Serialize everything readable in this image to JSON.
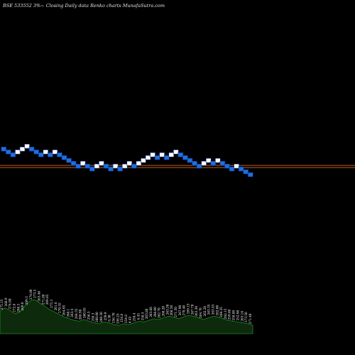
{
  "header": {
    "title": "BSE 533552  3%~  Closing Daily data  Renko  charts MunafaSutra.com"
  },
  "colors": {
    "background": "#000000",
    "up_brick": "#ffffff",
    "down_brick": "#1e6fe0",
    "brick_outline": "#0a2a7a",
    "reference_line": "#c0601c",
    "volume_fill": "#0d2a0d",
    "volume_edge": "#1e8a1e"
  },
  "chart_data": {
    "type": "renko",
    "title": "BSE 533552  3%~  Closing Daily data  Renko  charts MunafaSutra.com",
    "bricks": [
      {
        "level": 270,
        "dir": "down"
      },
      {
        "level": 268,
        "dir": "down"
      },
      {
        "level": 266,
        "dir": "down"
      },
      {
        "level": 268,
        "dir": "up"
      },
      {
        "level": 270,
        "dir": "up"
      },
      {
        "level": 272,
        "dir": "up"
      },
      {
        "level": 270,
        "dir": "down"
      },
      {
        "level": 268,
        "dir": "down"
      },
      {
        "level": 266,
        "dir": "down"
      },
      {
        "level": 268,
        "dir": "up"
      },
      {
        "level": 266,
        "dir": "down"
      },
      {
        "level": 268,
        "dir": "up"
      },
      {
        "level": 266,
        "dir": "down"
      },
      {
        "level": 264,
        "dir": "down"
      },
      {
        "level": 262,
        "dir": "down"
      },
      {
        "level": 260,
        "dir": "down"
      },
      {
        "level": 258,
        "dir": "down"
      },
      {
        "level": 260,
        "dir": "up"
      },
      {
        "level": 258,
        "dir": "down"
      },
      {
        "level": 256,
        "dir": "down"
      },
      {
        "level": 258,
        "dir": "up"
      },
      {
        "level": 260,
        "dir": "up"
      },
      {
        "level": 258,
        "dir": "down"
      },
      {
        "level": 256,
        "dir": "down"
      },
      {
        "level": 258,
        "dir": "up"
      },
      {
        "level": 256,
        "dir": "down"
      },
      {
        "level": 258,
        "dir": "up"
      },
      {
        "level": 260,
        "dir": "up"
      },
      {
        "level": 258,
        "dir": "down"
      },
      {
        "level": 260,
        "dir": "up"
      },
      {
        "level": 262,
        "dir": "up"
      },
      {
        "level": 264,
        "dir": "up"
      },
      {
        "level": 266,
        "dir": "up"
      },
      {
        "level": 264,
        "dir": "down"
      },
      {
        "level": 266,
        "dir": "up"
      },
      {
        "level": 264,
        "dir": "down"
      },
      {
        "level": 266,
        "dir": "up"
      },
      {
        "level": 268,
        "dir": "up"
      },
      {
        "level": 266,
        "dir": "down"
      },
      {
        "level": 264,
        "dir": "down"
      },
      {
        "level": 262,
        "dir": "down"
      },
      {
        "level": 260,
        "dir": "down"
      },
      {
        "level": 258,
        "dir": "down"
      },
      {
        "level": 260,
        "dir": "up"
      },
      {
        "level": 262,
        "dir": "up"
      },
      {
        "level": 260,
        "dir": "down"
      },
      {
        "level": 262,
        "dir": "up"
      },
      {
        "level": 260,
        "dir": "down"
      },
      {
        "level": 258,
        "dir": "down"
      },
      {
        "level": 256,
        "dir": "down"
      },
      {
        "level": 258,
        "dir": "up"
      },
      {
        "level": 256,
        "dir": "down"
      },
      {
        "level": 254,
        "dir": "down"
      },
      {
        "level": 252,
        "dir": "down"
      }
    ],
    "reference_lines": [
      258.5,
      257
    ],
    "y_range": [
      200,
      340
    ],
    "price_labels": [
      "275.15",
      "268.9",
      "274.00",
      "272.8",
      "280.3",
      "269.0",
      "269.3",
      "274.00",
      "273.5",
      "263.46",
      "271.80",
      "269.85",
      "275.3",
      "261.6",
      "270.55",
      "264.95",
      "268.1",
      "263.4",
      "264.55",
      "268.98",
      "260.85",
      "256.5",
      "256.3",
      "260.00",
      "260.30",
      "259.9",
      "6.30",
      "256.70",
      "258.25",
      "254.8",
      "254.8",
      "6.45",
      "258.4",
      "6.45",
      "258.5",
      "263.88",
      "263.88",
      "266.00",
      "262.70",
      "268.20",
      "263.30",
      "268.50",
      "271.50",
      "267.90",
      "270.40",
      "269.15",
      "267.70",
      "263.30",
      "264.70",
      "262.28",
      "263.35",
      "263.45",
      "262.00",
      "268.25",
      "262.15",
      "259.60",
      "258.80",
      "252.98",
      "263.18",
      "273.56",
      "271.40"
    ],
    "volume_profile": [
      0.54,
      0.62,
      0.56,
      0.48,
      0.52,
      0.66,
      0.78,
      0.82,
      0.74,
      0.66,
      0.58,
      0.52,
      0.46,
      0.4,
      0.36,
      0.32,
      0.3,
      0.34,
      0.3,
      0.26,
      0.24,
      0.28,
      0.26,
      0.22,
      0.2,
      0.24,
      0.22,
      0.26,
      0.3,
      0.28,
      0.32,
      0.36,
      0.34,
      0.38,
      0.42,
      0.4,
      0.36,
      0.4,
      0.44,
      0.42,
      0.38,
      0.34,
      0.38,
      0.42,
      0.4,
      0.36,
      0.32,
      0.3,
      0.28,
      0.26,
      0.24,
      0.2
    ],
    "grid": false
  }
}
